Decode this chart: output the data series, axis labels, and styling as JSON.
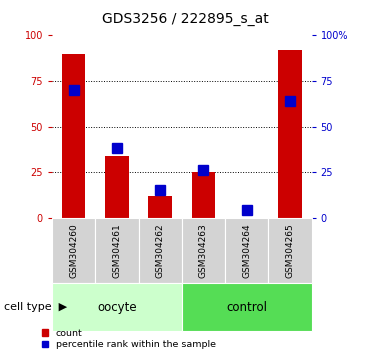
{
  "title": "GDS3256 / 222895_s_at",
  "samples": [
    "GSM304260",
    "GSM304261",
    "GSM304262",
    "GSM304263",
    "GSM304264",
    "GSM304265"
  ],
  "count_values": [
    90,
    34,
    12,
    25,
    0,
    92
  ],
  "percentile_values": [
    70,
    38,
    15,
    26,
    4,
    64
  ],
  "oocyte_indices": [
    0,
    1,
    2
  ],
  "control_indices": [
    3,
    4,
    5
  ],
  "count_color": "#cc0000",
  "percentile_color": "#0000cc",
  "left_axis_color": "#cc0000",
  "right_axis_color": "#0000cc",
  "y_ticks": [
    0,
    25,
    50,
    75,
    100
  ],
  "ylim": [
    0,
    100
  ],
  "background_color": "#ffffff",
  "oocyte_color": "#ccffcc",
  "control_color": "#55dd55",
  "sample_box_color": "#d3d3d3",
  "legend_count_label": "count",
  "legend_percentile_label": "percentile rank within the sample",
  "title_fontsize": 10,
  "tick_label_fontsize": 7,
  "group_label_fontsize": 8.5,
  "sample_label_fontsize": 6.5,
  "cell_type_fontsize": 8,
  "bar_width": 0.55,
  "blue_marker_size": 7
}
